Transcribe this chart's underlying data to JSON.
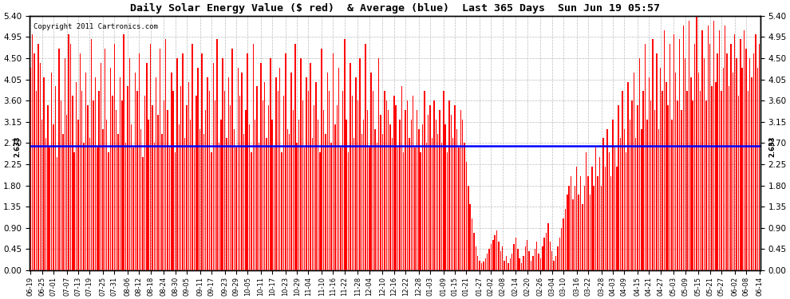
{
  "title": "Daily Solar Energy Value ($ red)  & Average (blue)  Last 365 Days  Sun Jun 19 05:57",
  "copyright_text": "Copyright 2011 Cartronics.com",
  "average_value": 2.633,
  "ylim": [
    0,
    5.4
  ],
  "yticks": [
    0.0,
    0.45,
    0.9,
    1.35,
    1.8,
    2.25,
    2.7,
    3.15,
    3.6,
    4.05,
    4.5,
    4.95,
    5.4
  ],
  "bar_color": "#FF0000",
  "line_color": "#0000FF",
  "bg_color": "#FFFFFF",
  "grid_color": "#BBBBBB",
  "x_labels": [
    "06-19",
    "06-25",
    "07-01",
    "07-07",
    "07-13",
    "07-19",
    "07-25",
    "07-31",
    "08-06",
    "08-12",
    "08-18",
    "08-24",
    "08-30",
    "09-05",
    "09-11",
    "09-17",
    "09-23",
    "09-29",
    "10-05",
    "10-11",
    "10-17",
    "10-23",
    "10-29",
    "11-04",
    "11-10",
    "11-16",
    "11-22",
    "11-28",
    "12-04",
    "12-10",
    "12-16",
    "12-22",
    "12-28",
    "01-03",
    "01-09",
    "01-15",
    "01-21",
    "01-27",
    "02-02",
    "02-08",
    "02-14",
    "02-20",
    "02-26",
    "03-04",
    "03-10",
    "03-16",
    "03-22",
    "03-28",
    "04-03",
    "04-09",
    "04-15",
    "04-21",
    "04-27",
    "05-03",
    "05-09",
    "05-15",
    "05-21",
    "05-27",
    "06-02",
    "06-08",
    "06-14"
  ],
  "values": [
    4.3,
    5.0,
    4.6,
    3.8,
    4.8,
    4.4,
    3.2,
    4.1,
    2.8,
    3.5,
    2.6,
    4.2,
    3.1,
    3.9,
    2.4,
    4.7,
    3.6,
    2.9,
    4.5,
    3.3,
    5.0,
    4.8,
    3.7,
    2.5,
    4.0,
    3.2,
    4.6,
    3.8,
    2.7,
    4.2,
    3.5,
    2.8,
    4.9,
    3.6,
    4.1,
    2.6,
    3.8,
    4.4,
    3.0,
    4.7,
    3.2,
    2.5,
    4.3,
    3.7,
    4.8,
    3.4,
    2.9,
    4.1,
    3.6,
    5.0,
    2.7,
    3.9,
    4.5,
    3.1,
    2.6,
    4.2,
    3.8,
    4.6,
    3.0,
    2.4,
    3.7,
    4.4,
    3.2,
    4.8,
    3.5,
    2.7,
    4.1,
    3.3,
    4.7,
    2.9,
    3.6,
    4.9,
    3.4,
    2.6,
    4.2,
    3.8,
    2.5,
    4.5,
    3.1,
    3.9,
    4.6,
    2.8,
    3.5,
    4.0,
    3.2,
    4.8,
    2.6,
    3.7,
    4.3,
    3.0,
    4.6,
    2.9,
    3.4,
    4.1,
    3.8,
    2.5,
    4.4,
    3.6,
    4.9,
    2.7,
    3.2,
    4.5,
    3.8,
    2.8,
    4.1,
    3.5,
    4.7,
    3.0,
    2.6,
    4.3,
    3.7,
    4.2,
    2.9,
    3.4,
    4.6,
    3.1,
    2.5,
    4.8,
    3.2,
    3.9,
    2.7,
    4.4,
    3.6,
    4.0,
    2.8,
    3.5,
    4.5,
    3.2,
    2.6,
    4.1,
    3.8,
    4.3,
    2.5,
    3.7,
    4.6,
    3.0,
    2.9,
    4.2,
    3.4,
    4.8,
    2.7,
    3.2,
    4.5,
    3.6,
    2.6,
    4.1,
    3.8,
    4.4,
    2.8,
    3.5,
    4.0,
    3.2,
    2.5,
    4.7,
    3.4,
    2.9,
    4.2,
    3.8,
    2.7,
    4.6,
    3.1,
    3.5,
    4.3,
    2.6,
    3.8,
    4.9,
    3.2,
    2.5,
    4.4,
    3.7,
    2.8,
    4.1,
    3.6,
    4.5,
    2.9,
    3.2,
    4.8,
    3.4,
    2.6,
    4.2,
    3.8,
    3.0,
    2.7,
    4.5,
    3.3,
    2.9,
    3.8,
    3.6,
    3.4,
    3.1,
    2.8,
    3.7,
    3.5,
    2.6,
    3.2,
    3.9,
    2.5,
    3.4,
    3.6,
    2.8,
    3.2,
    3.7,
    2.6,
    3.4,
    3.0,
    2.5,
    3.1,
    3.8,
    2.7,
    3.3,
    3.5,
    2.8,
    3.6,
    3.2,
    2.9,
    3.4,
    2.7,
    3.8,
    3.1,
    2.5,
    3.6,
    3.3,
    2.8,
    3.5,
    3.0,
    2.6,
    3.4,
    3.2,
    2.7,
    2.3,
    1.8,
    1.4,
    1.1,
    0.8,
    0.5,
    0.3,
    0.2,
    0.15,
    0.18,
    0.25,
    0.35,
    0.45,
    0.55,
    0.65,
    0.75,
    0.85,
    0.6,
    0.4,
    0.5,
    0.2,
    0.3,
    0.15,
    0.25,
    0.35,
    0.55,
    0.7,
    0.45,
    0.25,
    0.15,
    0.3,
    0.5,
    0.65,
    0.4,
    0.2,
    0.3,
    0.45,
    0.6,
    0.35,
    0.25,
    0.5,
    0.7,
    0.8,
    1.0,
    0.6,
    0.4,
    0.2,
    0.3,
    0.5,
    0.7,
    0.9,
    1.1,
    1.3,
    1.6,
    1.8,
    2.0,
    1.5,
    1.8,
    2.2,
    1.6,
    2.0,
    1.4,
    1.8,
    2.5,
    2.0,
    1.6,
    2.2,
    1.8,
    2.6,
    2.0,
    2.4,
    1.8,
    2.8,
    2.2,
    3.0,
    2.5,
    2.0,
    3.2,
    2.6,
    2.2,
    3.5,
    2.8,
    3.8,
    3.0,
    2.5,
    4.0,
    3.2,
    3.6,
    4.2,
    2.8,
    3.5,
    4.5,
    3.0,
    3.8,
    4.8,
    3.2,
    4.1,
    3.6,
    4.9,
    3.4,
    4.6,
    3.0,
    4.3,
    3.8,
    5.1,
    4.0,
    3.5,
    4.8,
    3.2,
    5.0,
    4.2,
    3.6,
    4.9,
    3.4,
    5.2,
    4.5,
    3.8,
    5.3,
    4.1,
    3.6,
    4.8,
    5.4,
    4.2,
    3.8,
    5.1,
    4.5,
    3.6,
    5.2,
    4.8,
    3.9,
    5.3,
    4.0,
    4.6,
    5.1,
    3.8,
    4.3,
    5.2,
    4.6,
    3.9,
    4.8,
    4.2,
    5.0,
    4.5,
    3.7,
    4.9,
    4.3,
    5.1,
    4.7,
    3.8,
    4.5,
    4.1,
    4.6,
    5.0,
    4.3,
    4.8
  ]
}
